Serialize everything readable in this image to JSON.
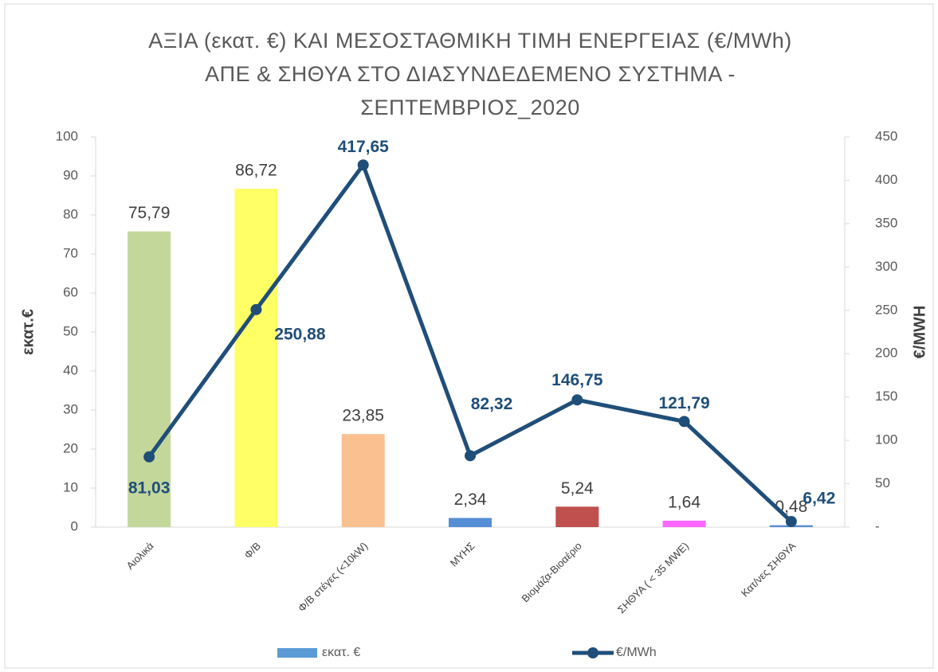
{
  "chart_data": {
    "type": "bar",
    "title": "ΑΞΙΑ (εκατ. €) ΚΑΙ ΜΕΣΟΣΤΑΘΜΙΚΗ ΤΙΜΗ ΕΝΕΡΓΕΙΑΣ (€/MWh) ΑΠΕ & ΣΗΘΥΑ  ΣΤΟ ΔΙΑΣΥΝΔΕΔΕΜΕΝΟ ΣΥΣΤΗΜΑ - ΣΕΠΤΕΜΒΡΙΟΣ_2020",
    "y_label": "εκατ.€",
    "y2_label": "€/MWH",
    "categories": [
      "Αιολικά",
      "Φ/Β",
      "Φ/Β στέγες (<10kW)",
      "ΜΥΗΣ",
      "Βιομάζα-Βιοαέριο",
      "ΣΗΘΥΑ ( < 35 MWE)",
      "Κατ/νες ΣΗΘΥΑ"
    ],
    "series": [
      {
        "name": "εκατ. €",
        "type": "bar",
        "color": "#5b9bd5",
        "colors": [
          "#c4d79b",
          "#ffff66",
          "#fac090",
          "#558ed5",
          "#c0504d",
          "#ff66ff",
          "#558ed5"
        ],
        "values": [
          75.79,
          86.72,
          23.85,
          2.34,
          5.24,
          1.64,
          0.48
        ],
        "value_labels": [
          "75,79",
          "86,72",
          "23,85",
          "2,34",
          "5,24",
          "1,64",
          "0,48"
        ]
      },
      {
        "name": "€/MWh",
        "type": "line",
        "axis": "y2",
        "color": "#1f4e79",
        "values": [
          81.03,
          250.88,
          417.65,
          82.32,
          146.75,
          121.79,
          6.42
        ],
        "value_labels": [
          "81,03",
          "250,88",
          "417,65",
          "82,32",
          "146,75",
          "121,79",
          "6,42"
        ]
      }
    ],
    "ylim": [
      0,
      100
    ],
    "yticks": [
      0,
      10,
      20,
      30,
      40,
      50,
      60,
      70,
      80,
      90,
      100
    ],
    "y2lim": [
      0,
      450
    ],
    "y2ticks": [
      {
        "value": 0,
        "label": "-"
      },
      50,
      100,
      150,
      200,
      250,
      300,
      350,
      400,
      450
    ],
    "legend": "bottom"
  }
}
